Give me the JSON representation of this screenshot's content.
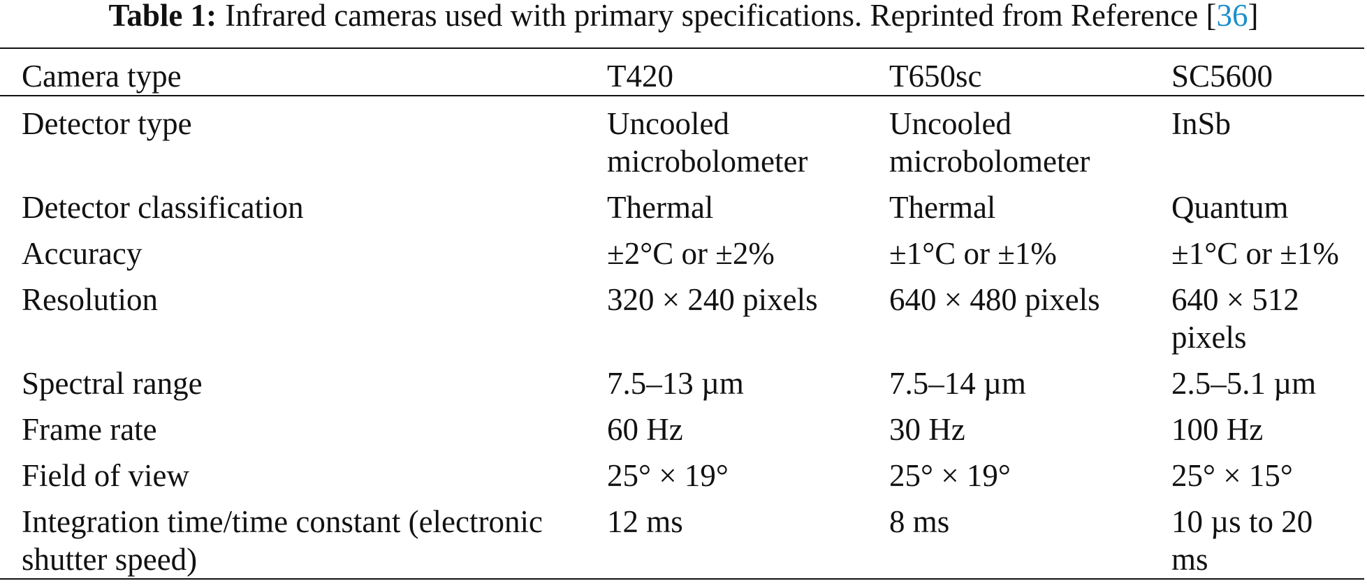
{
  "caption": {
    "label": "Table 1:",
    "text": "Infrared cameras used with primary specifications. Reprinted from Reference [",
    "ref": "36",
    "text_end": "]"
  },
  "table": {
    "header": [
      "Camera type",
      "T420",
      "T650sc",
      "SC5600"
    ],
    "rows": [
      [
        "Detector type",
        "Uncooled microbolometer",
        "Uncooled microbolometer",
        "InSb"
      ],
      [
        "Detector classification",
        "Thermal",
        "Thermal",
        "Quantum"
      ],
      [
        "Accuracy",
        "±2°C or ±2%",
        "±1°C or ±1%",
        "±1°C or ±1%"
      ],
      [
        "Resolution",
        "320 × 240 pixels",
        "640 × 480 pixels",
        "640 × 512 pixels"
      ],
      [
        "Spectral range",
        "7.5–13 µm",
        "7.5–14 µm",
        "2.5–5.1 µm"
      ],
      [
        "Frame rate",
        "60 Hz",
        "30 Hz",
        "100 Hz"
      ],
      [
        "Field of view",
        "25° × 19°",
        "25° × 19°",
        "25° × 15°"
      ],
      [
        "Integration time/time constant (electronic shutter speed)",
        "12 ms",
        "8 ms",
        "10 µs to 20 ms"
      ]
    ]
  }
}
